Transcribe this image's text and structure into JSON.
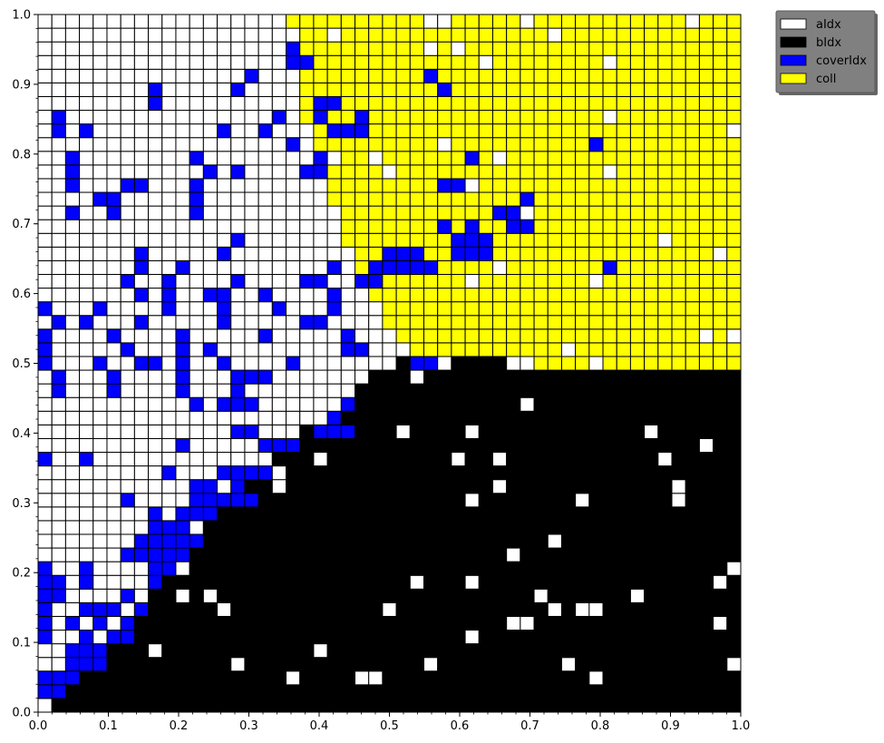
{
  "chart_data": {
    "type": "heatmap",
    "xlim": [
      0,
      1
    ],
    "ylim": [
      0,
      1
    ],
    "grid_cells": [
      51,
      51
    ],
    "xticks": [
      "0.0",
      "0.1",
      "0.2",
      "0.3",
      "0.4",
      "0.5",
      "0.6",
      "0.7",
      "0.8",
      "0.9",
      "1.0"
    ],
    "yticks": [
      "0.0",
      "0.1",
      "0.2",
      "0.3",
      "0.4",
      "0.5",
      "0.6",
      "0.7",
      "0.8",
      "0.9",
      "1.0"
    ],
    "legend": {
      "placement": "outside-top-right",
      "entries": [
        {
          "label": "aIdx",
          "color": "#ffffff"
        },
        {
          "label": "bIdx",
          "color": "#000000"
        },
        {
          "label": "coverIdx",
          "color": "#0000ff"
        },
        {
          "label": "coll",
          "color": "#ffff00"
        }
      ]
    },
    "region_boundaries": {
      "description": "cells above the black-region boundary and right of the yellow-region boundary are coll; lower-right region is bIdx; remaining cells are aIdx",
      "bIdx_upper_boundary_points": [
        [
          0.0,
          0.0
        ],
        [
          0.1,
          0.1
        ],
        [
          0.2,
          0.22
        ],
        [
          0.3,
          0.32
        ],
        [
          0.4,
          0.42
        ],
        [
          0.5,
          0.5
        ],
        [
          0.6,
          0.51
        ],
        [
          0.7,
          0.5
        ],
        [
          0.8,
          0.5
        ],
        [
          0.9,
          0.5
        ],
        [
          1.0,
          0.5
        ]
      ],
      "coll_left_boundary_points": [
        [
          0.36,
          1.0
        ],
        [
          0.38,
          0.85
        ],
        [
          0.42,
          0.72
        ],
        [
          0.46,
          0.62
        ],
        [
          0.5,
          0.55
        ],
        [
          0.55,
          0.5
        ]
      ]
    },
    "coverIdx_cells": [
      [
        0,
        1
      ],
      [
        1,
        1
      ],
      [
        0,
        2
      ],
      [
        1,
        2
      ],
      [
        2,
        2
      ],
      [
        2,
        3
      ],
      [
        2,
        4
      ],
      [
        3,
        3
      ],
      [
        4,
        3
      ],
      [
        3,
        4
      ],
      [
        4,
        4
      ],
      [
        0,
        5
      ],
      [
        5,
        5
      ],
      [
        3,
        5
      ],
      [
        6,
        5
      ],
      [
        0,
        6
      ],
      [
        2,
        6
      ],
      [
        4,
        6
      ],
      [
        6,
        6
      ],
      [
        0,
        7
      ],
      [
        3,
        7
      ],
      [
        4,
        7
      ],
      [
        5,
        7
      ],
      [
        7,
        7
      ],
      [
        0,
        8
      ],
      [
        1,
        8
      ],
      [
        6,
        8
      ],
      [
        0,
        9
      ],
      [
        1,
        9
      ],
      [
        3,
        9
      ],
      [
        8,
        9
      ],
      [
        0,
        10
      ],
      [
        3,
        10
      ],
      [
        8,
        10
      ],
      [
        9,
        10
      ],
      [
        6,
        11
      ],
      [
        7,
        11
      ],
      [
        8,
        11
      ],
      [
        9,
        11
      ],
      [
        10,
        11
      ],
      [
        7,
        12
      ],
      [
        8,
        12
      ],
      [
        9,
        12
      ],
      [
        10,
        12
      ],
      [
        11,
        12
      ],
      [
        8,
        13
      ],
      [
        9,
        13
      ],
      [
        10,
        13
      ],
      [
        8,
        14
      ],
      [
        10,
        14
      ],
      [
        11,
        14
      ],
      [
        12,
        14
      ],
      [
        6,
        15
      ],
      [
        11,
        15
      ],
      [
        12,
        15
      ],
      [
        13,
        15
      ],
      [
        14,
        15
      ],
      [
        15,
        15
      ],
      [
        11,
        16
      ],
      [
        12,
        16
      ],
      [
        14,
        16
      ],
      [
        9,
        17
      ],
      [
        13,
        17
      ],
      [
        14,
        17
      ],
      [
        15,
        17
      ],
      [
        16,
        17
      ],
      [
        0,
        18
      ],
      [
        3,
        18
      ],
      [
        10,
        19
      ],
      [
        16,
        19
      ],
      [
        17,
        19
      ],
      [
        18,
        19
      ],
      [
        14,
        20
      ],
      [
        15,
        20
      ],
      [
        20,
        20
      ],
      [
        21,
        20
      ],
      [
        22,
        20
      ],
      [
        21,
        21
      ],
      [
        11,
        22
      ],
      [
        13,
        22
      ],
      [
        14,
        22
      ],
      [
        15,
        22
      ],
      [
        22,
        22
      ],
      [
        1,
        23
      ],
      [
        5,
        23
      ],
      [
        10,
        23
      ],
      [
        14,
        23
      ],
      [
        1,
        24
      ],
      [
        5,
        24
      ],
      [
        10,
        24
      ],
      [
        14,
        24
      ],
      [
        15,
        24
      ],
      [
        16,
        24
      ],
      [
        0,
        25
      ],
      [
        4,
        25
      ],
      [
        7,
        25
      ],
      [
        8,
        25
      ],
      [
        10,
        25
      ],
      [
        13,
        25
      ],
      [
        18,
        25
      ],
      [
        27,
        25
      ],
      [
        28,
        25
      ],
      [
        0,
        26
      ],
      [
        6,
        26
      ],
      [
        10,
        26
      ],
      [
        12,
        26
      ],
      [
        22,
        26
      ],
      [
        23,
        26
      ],
      [
        0,
        27
      ],
      [
        5,
        27
      ],
      [
        10,
        27
      ],
      [
        16,
        27
      ],
      [
        22,
        27
      ],
      [
        1,
        28
      ],
      [
        3,
        28
      ],
      [
        7,
        28
      ],
      [
        13,
        28
      ],
      [
        19,
        28
      ],
      [
        20,
        28
      ],
      [
        0,
        29
      ],
      [
        4,
        29
      ],
      [
        9,
        29
      ],
      [
        13,
        29
      ],
      [
        17,
        29
      ],
      [
        21,
        29
      ],
      [
        7,
        30
      ],
      [
        9,
        30
      ],
      [
        12,
        30
      ],
      [
        13,
        30
      ],
      [
        16,
        30
      ],
      [
        21,
        30
      ],
      [
        6,
        31
      ],
      [
        9,
        31
      ],
      [
        14,
        31
      ],
      [
        19,
        31
      ],
      [
        20,
        31
      ],
      [
        23,
        31
      ],
      [
        24,
        31
      ],
      [
        7,
        32
      ],
      [
        10,
        32
      ],
      [
        21,
        32
      ],
      [
        24,
        32
      ],
      [
        25,
        32
      ],
      [
        26,
        32
      ],
      [
        27,
        32
      ],
      [
        28,
        32
      ],
      [
        7,
        33
      ],
      [
        13,
        33
      ],
      [
        25,
        33
      ],
      [
        26,
        33
      ],
      [
        27,
        33
      ],
      [
        30,
        33
      ],
      [
        31,
        33
      ],
      [
        32,
        33
      ],
      [
        14,
        34
      ],
      [
        30,
        34
      ],
      [
        31,
        34
      ],
      [
        32,
        34
      ],
      [
        29,
        35
      ],
      [
        31,
        35
      ],
      [
        34,
        35
      ],
      [
        35,
        35
      ],
      [
        2,
        36
      ],
      [
        5,
        36
      ],
      [
        11,
        36
      ],
      [
        33,
        36
      ],
      [
        34,
        36
      ],
      [
        4,
        37
      ],
      [
        5,
        37
      ],
      [
        11,
        37
      ],
      [
        35,
        37
      ],
      [
        2,
        38
      ],
      [
        6,
        38
      ],
      [
        7,
        38
      ],
      [
        11,
        38
      ],
      [
        29,
        38
      ],
      [
        30,
        38
      ],
      [
        2,
        39
      ],
      [
        12,
        39
      ],
      [
        14,
        39
      ],
      [
        19,
        39
      ],
      [
        20,
        39
      ],
      [
        2,
        40
      ],
      [
        11,
        40
      ],
      [
        20,
        40
      ],
      [
        31,
        40
      ],
      [
        18,
        41
      ],
      [
        1,
        42
      ],
      [
        3,
        42
      ],
      [
        13,
        42
      ],
      [
        16,
        42
      ],
      [
        21,
        42
      ],
      [
        22,
        42
      ],
      [
        23,
        42
      ],
      [
        1,
        43
      ],
      [
        17,
        43
      ],
      [
        20,
        43
      ],
      [
        23,
        43
      ],
      [
        8,
        44
      ],
      [
        20,
        44
      ],
      [
        21,
        44
      ],
      [
        14,
        45
      ],
      [
        29,
        45
      ],
      [
        15,
        46
      ],
      [
        28,
        46
      ],
      [
        18,
        47
      ],
      [
        19,
        47
      ],
      [
        18,
        48
      ],
      [
        8,
        45
      ],
      [
        40,
        41
      ],
      [
        41,
        32
      ]
    ]
  }
}
